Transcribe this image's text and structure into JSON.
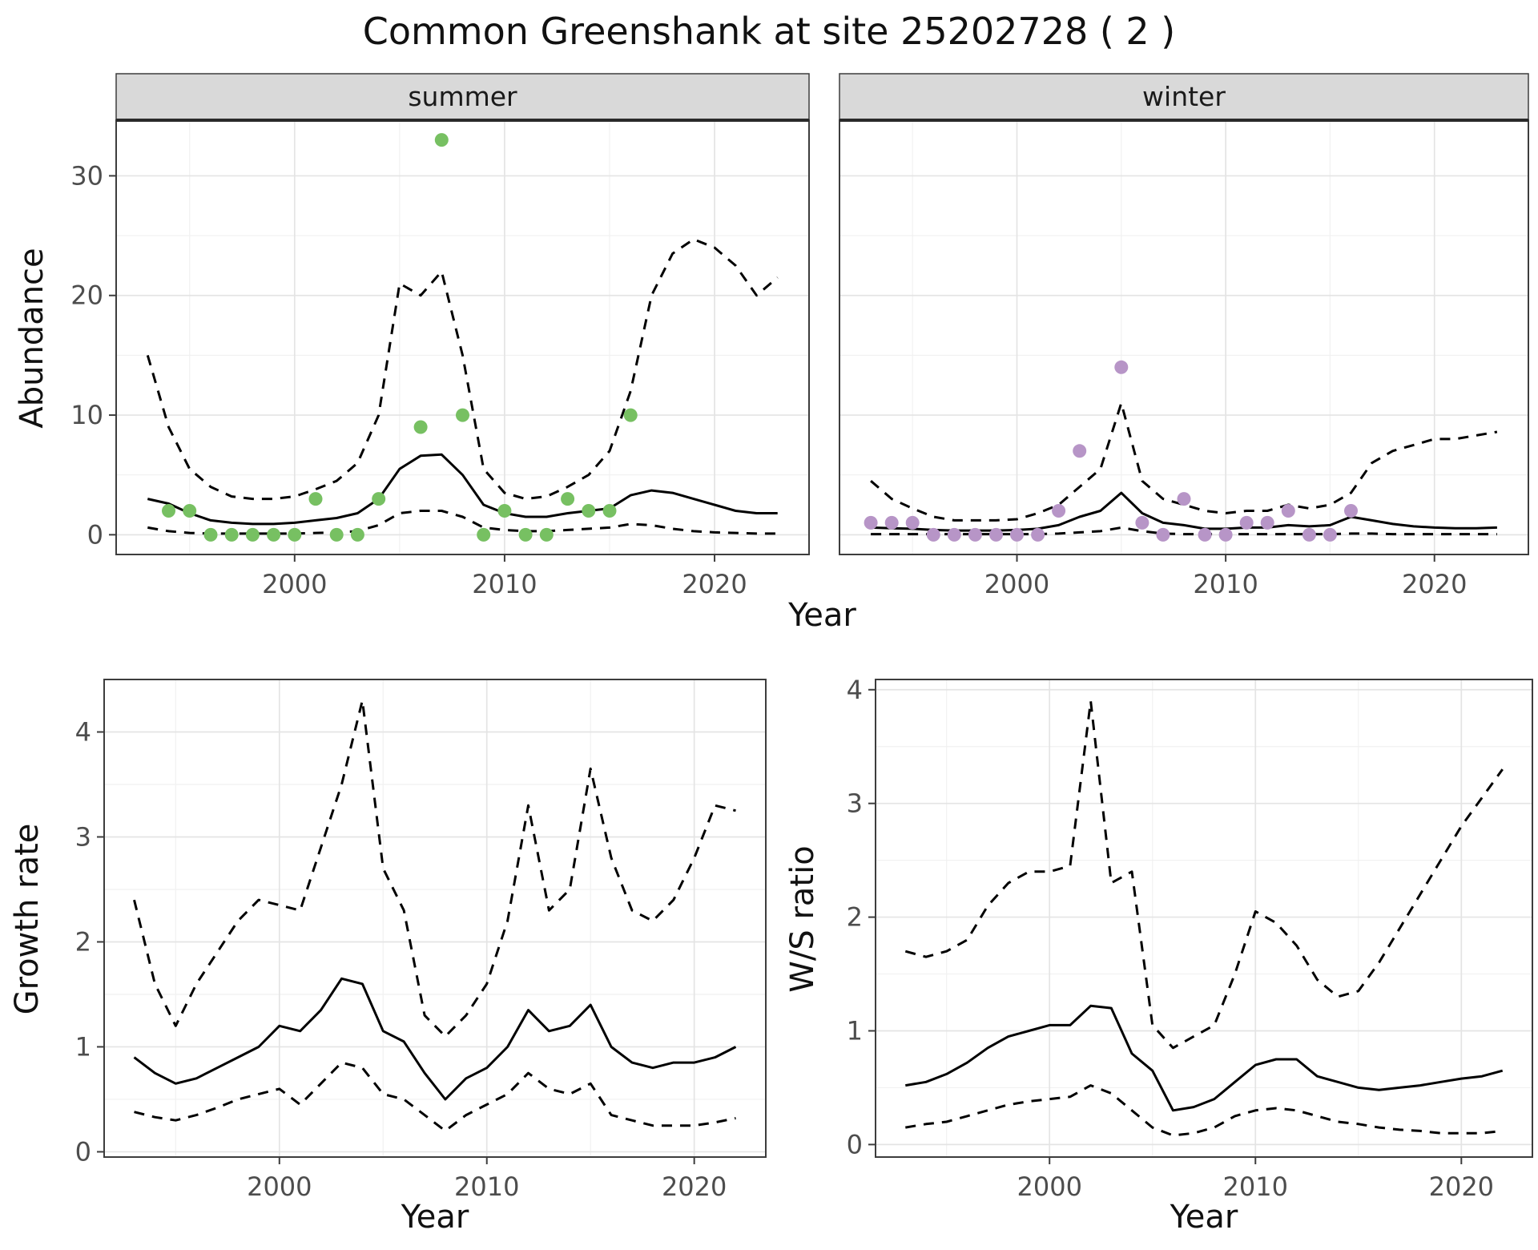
{
  "title": "Common Greenshank at site 25202728 ( 2 )",
  "labels": {
    "year": "Year",
    "abundance": "Abundance",
    "growth_rate": "Growth rate",
    "ws_ratio": "W/S ratio"
  },
  "facets": [
    "summer",
    "winter"
  ],
  "colors": {
    "summer_points": "#77c062",
    "winter_points": "#b795c7",
    "line": "#000000",
    "strip_background": "#d9d9d9",
    "grid_major": "#e4e4e4",
    "grid_minor": "#f1f1f1",
    "panel_border": "#3d3d3d",
    "strip_underline": "#2a2a2a",
    "tick_text": "#4d4d4d",
    "text": "#1a1a1a"
  },
  "chart_data": [
    {
      "id": "abundance-summer",
      "type": "line",
      "facet_label": "summer",
      "xlabel": "Year",
      "ylabel": "Abundance",
      "xlim": [
        1991.5,
        2024.5
      ],
      "ylim": [
        -1.65,
        34.65
      ],
      "xticks": [
        2000,
        2010,
        2020
      ],
      "xticks_minor": [
        1995,
        2005,
        2015
      ],
      "yticks": [
        0,
        10,
        20,
        30
      ],
      "yticks_minor": [
        5,
        15,
        25
      ],
      "series": [
        {
          "name": "mean",
          "style": "solid",
          "x": [
            1993,
            1994,
            1995,
            1996,
            1997,
            1998,
            1999,
            2000,
            2001,
            2002,
            2003,
            2004,
            2005,
            2006,
            2007,
            2008,
            2009,
            2010,
            2011,
            2012,
            2013,
            2014,
            2015,
            2016,
            2017,
            2018,
            2019,
            2020,
            2021,
            2022,
            2023
          ],
          "y": [
            3.0,
            2.6,
            1.8,
            1.2,
            1.0,
            0.9,
            0.9,
            1.0,
            1.2,
            1.4,
            1.8,
            3.0,
            5.5,
            6.6,
            6.7,
            5.0,
            2.5,
            1.8,
            1.5,
            1.5,
            1.8,
            2.0,
            2.2,
            3.3,
            3.7,
            3.5,
            3.0,
            2.5,
            2.0,
            1.8,
            1.8
          ]
        },
        {
          "name": "upper_ci",
          "style": "dashed",
          "x": [
            1993,
            1994,
            1995,
            1996,
            1997,
            1998,
            1999,
            2000,
            2001,
            2002,
            2003,
            2004,
            2005,
            2006,
            2007,
            2008,
            2009,
            2010,
            2011,
            2012,
            2013,
            2014,
            2015,
            2016,
            2017,
            2018,
            2019,
            2020,
            2021,
            2022,
            2023
          ],
          "y": [
            15.0,
            9.0,
            5.5,
            4.0,
            3.2,
            3.0,
            3.0,
            3.2,
            3.8,
            4.5,
            6.0,
            10.0,
            21.0,
            20.0,
            22.0,
            15.0,
            5.5,
            3.5,
            3.0,
            3.2,
            4.0,
            5.0,
            7.0,
            12.0,
            20.0,
            23.5,
            24.7,
            24.0,
            22.5,
            20.0,
            21.5
          ]
        },
        {
          "name": "lower_ci",
          "style": "dashed",
          "x": [
            1993,
            1994,
            1995,
            1996,
            1997,
            1998,
            1999,
            2000,
            2001,
            2002,
            2003,
            2004,
            2005,
            2006,
            2007,
            2008,
            2009,
            2010,
            2011,
            2012,
            2013,
            2014,
            2015,
            2016,
            2017,
            2018,
            2019,
            2020,
            2021,
            2022,
            2023
          ],
          "y": [
            0.6,
            0.3,
            0.15,
            0.1,
            0.1,
            0.1,
            0.1,
            0.1,
            0.15,
            0.2,
            0.3,
            0.8,
            1.8,
            2.0,
            2.0,
            1.5,
            0.6,
            0.4,
            0.3,
            0.3,
            0.4,
            0.5,
            0.6,
            0.9,
            0.8,
            0.5,
            0.3,
            0.2,
            0.15,
            0.1,
            0.1
          ]
        }
      ],
      "points": {
        "name": "observed-counts",
        "color_key": "summer_points",
        "x": [
          1994,
          1995,
          1996,
          1997,
          1998,
          1999,
          2000,
          2001,
          2002,
          2003,
          2004,
          2006,
          2007,
          2008,
          2009,
          2010,
          2011,
          2012,
          2013,
          2014,
          2015,
          2016
        ],
        "y": [
          2,
          2,
          0,
          0,
          0,
          0,
          0,
          3,
          0,
          0,
          3,
          9,
          33,
          10,
          0,
          2,
          0,
          0,
          3,
          2,
          2,
          10
        ]
      }
    },
    {
      "id": "abundance-winter",
      "type": "line",
      "facet_label": "winter",
      "xlabel": "Year",
      "ylabel": "Abundance",
      "xlim": [
        1991.5,
        2024.5
      ],
      "ylim": [
        -1.65,
        34.65
      ],
      "xticks": [
        2000,
        2010,
        2020
      ],
      "xticks_minor": [
        1995,
        2005,
        2015
      ],
      "yticks": [
        0,
        10,
        20,
        30
      ],
      "yticks_minor": [
        5,
        15,
        25
      ],
      "series": [
        {
          "name": "mean",
          "style": "solid",
          "x": [
            1993,
            1994,
            1995,
            1996,
            1997,
            1998,
            1999,
            2000,
            2001,
            2002,
            2003,
            2004,
            2005,
            2006,
            2007,
            2008,
            2009,
            2010,
            2011,
            2012,
            2013,
            2014,
            2015,
            2016,
            2017,
            2018,
            2019,
            2020,
            2021,
            2022,
            2023
          ],
          "y": [
            0.6,
            0.55,
            0.5,
            0.4,
            0.35,
            0.35,
            0.35,
            0.4,
            0.5,
            0.8,
            1.5,
            2.0,
            3.5,
            1.8,
            1.0,
            0.8,
            0.5,
            0.5,
            0.6,
            0.6,
            0.8,
            0.7,
            0.8,
            1.5,
            1.2,
            0.9,
            0.7,
            0.6,
            0.55,
            0.55,
            0.6
          ]
        },
        {
          "name": "upper_ci",
          "style": "dashed",
          "x": [
            1993,
            1994,
            1995,
            1996,
            1997,
            1998,
            1999,
            2000,
            2001,
            2002,
            2003,
            2004,
            2005,
            2006,
            2007,
            2008,
            2009,
            2010,
            2011,
            2012,
            2013,
            2014,
            2015,
            2016,
            2017,
            2018,
            2019,
            2020,
            2021,
            2022,
            2023
          ],
          "y": [
            4.5,
            3.0,
            2.2,
            1.5,
            1.2,
            1.2,
            1.2,
            1.3,
            1.8,
            2.5,
            4.0,
            5.5,
            11.0,
            4.5,
            3.0,
            2.5,
            2.0,
            1.8,
            2.0,
            2.0,
            2.5,
            2.2,
            2.5,
            3.5,
            6.0,
            7.0,
            7.5,
            8.0,
            8.0,
            8.3,
            8.6
          ]
        },
        {
          "name": "lower_ci",
          "style": "dashed",
          "x": [
            1993,
            1994,
            1995,
            1996,
            1997,
            1998,
            1999,
            2000,
            2001,
            2002,
            2003,
            2004,
            2005,
            2006,
            2007,
            2008,
            2009,
            2010,
            2011,
            2012,
            2013,
            2014,
            2015,
            2016,
            2017,
            2018,
            2019,
            2020,
            2021,
            2022,
            2023
          ],
          "y": [
            0.05,
            0.05,
            0.05,
            0.05,
            0.05,
            0.05,
            0.05,
            0.05,
            0.05,
            0.1,
            0.2,
            0.3,
            0.6,
            0.3,
            0.1,
            0.05,
            0.05,
            0.05,
            0.05,
            0.05,
            0.05,
            0.05,
            0.05,
            0.1,
            0.1,
            0.05,
            0.05,
            0.05,
            0.05,
            0.05,
            0.05
          ]
        }
      ],
      "points": {
        "name": "observed-counts",
        "color_key": "winter_points",
        "x": [
          1993,
          1994,
          1995,
          1996,
          1997,
          1998,
          1999,
          2000,
          2001,
          2002,
          2003,
          2005,
          2006,
          2007,
          2008,
          2009,
          2010,
          2011,
          2012,
          2013,
          2014,
          2015,
          2016
        ],
        "y": [
          1,
          1,
          1,
          0,
          0,
          0,
          0,
          0,
          0,
          2,
          7,
          14,
          1,
          0,
          3,
          0,
          0,
          1,
          1,
          2,
          0,
          0,
          2
        ]
      }
    },
    {
      "id": "growth-rate",
      "type": "line",
      "facet_label": null,
      "xlabel": "Year",
      "ylabel": "Growth rate",
      "xlim": [
        1991.55,
        2023.45
      ],
      "ylim": [
        -0.05,
        4.5
      ],
      "xticks": [
        2000,
        2010,
        2020
      ],
      "xticks_minor": [
        1995,
        2005,
        2015
      ],
      "yticks": [
        0,
        1,
        2,
        3,
        4
      ],
      "yticks_minor": [
        0.5,
        1.5,
        2.5,
        3.5
      ],
      "series": [
        {
          "name": "mean",
          "style": "solid",
          "x": [
            1993,
            1994,
            1995,
            1996,
            1997,
            1998,
            1999,
            2000,
            2001,
            2002,
            2003,
            2004,
            2005,
            2006,
            2007,
            2008,
            2009,
            2010,
            2011,
            2012,
            2013,
            2014,
            2015,
            2016,
            2017,
            2018,
            2019,
            2020,
            2021,
            2022
          ],
          "y": [
            0.9,
            0.75,
            0.65,
            0.7,
            0.8,
            0.9,
            1.0,
            1.2,
            1.15,
            1.35,
            1.65,
            1.6,
            1.15,
            1.05,
            0.75,
            0.5,
            0.7,
            0.8,
            1.0,
            1.35,
            1.15,
            1.2,
            1.4,
            1.0,
            0.85,
            0.8,
            0.85,
            0.85,
            0.9,
            1.0
          ]
        },
        {
          "name": "upper_ci",
          "style": "dashed",
          "x": [
            1993,
            1994,
            1995,
            1996,
            1997,
            1998,
            1999,
            2000,
            2001,
            2002,
            2003,
            2004,
            2005,
            2006,
            2007,
            2008,
            2009,
            2010,
            2011,
            2012,
            2013,
            2014,
            2015,
            2016,
            2017,
            2018,
            2019,
            2020,
            2021,
            2022
          ],
          "y": [
            2.4,
            1.6,
            1.2,
            1.6,
            1.9,
            2.2,
            2.4,
            2.35,
            2.3,
            2.9,
            3.5,
            4.3,
            2.7,
            2.3,
            1.3,
            1.1,
            1.3,
            1.6,
            2.2,
            3.3,
            2.3,
            2.5,
            3.65,
            2.8,
            2.3,
            2.2,
            2.4,
            2.8,
            3.3,
            3.25
          ]
        },
        {
          "name": "lower_ci",
          "style": "dashed",
          "x": [
            1993,
            1994,
            1995,
            1996,
            1997,
            1998,
            1999,
            2000,
            2001,
            2002,
            2003,
            2004,
            2005,
            2006,
            2007,
            2008,
            2009,
            2010,
            2011,
            2012,
            2013,
            2014,
            2015,
            2016,
            2017,
            2018,
            2019,
            2020,
            2021,
            2022
          ],
          "y": [
            0.38,
            0.33,
            0.3,
            0.35,
            0.42,
            0.5,
            0.55,
            0.6,
            0.45,
            0.65,
            0.85,
            0.8,
            0.55,
            0.5,
            0.35,
            0.2,
            0.35,
            0.45,
            0.55,
            0.75,
            0.6,
            0.55,
            0.65,
            0.35,
            0.3,
            0.25,
            0.25,
            0.25,
            0.28,
            0.32
          ]
        }
      ],
      "points": null
    },
    {
      "id": "ws-ratio",
      "type": "line",
      "facet_label": null,
      "xlabel": "Year",
      "ylabel": "W/S ratio",
      "xlim": [
        1991.55,
        2023.45
      ],
      "ylim": [
        -0.11,
        4.09
      ],
      "xticks": [
        2000,
        2010,
        2020
      ],
      "xticks_minor": [
        1995,
        2005,
        2015
      ],
      "yticks": [
        0,
        1,
        2,
        3,
        4
      ],
      "yticks_minor": [
        0.5,
        1.5,
        2.5,
        3.5
      ],
      "series": [
        {
          "name": "mean",
          "style": "solid",
          "x": [
            1993,
            1994,
            1995,
            1996,
            1997,
            1998,
            1999,
            2000,
            2001,
            2002,
            2003,
            2004,
            2005,
            2006,
            2007,
            2008,
            2009,
            2010,
            2011,
            2012,
            2013,
            2014,
            2015,
            2016,
            2017,
            2018,
            2019,
            2020,
            2021,
            2022
          ],
          "y": [
            0.52,
            0.55,
            0.62,
            0.72,
            0.85,
            0.95,
            1.0,
            1.05,
            1.05,
            1.22,
            1.2,
            0.8,
            0.65,
            0.3,
            0.33,
            0.4,
            0.55,
            0.7,
            0.75,
            0.75,
            0.6,
            0.55,
            0.5,
            0.48,
            0.5,
            0.52,
            0.55,
            0.58,
            0.6,
            0.65
          ]
        },
        {
          "name": "upper_ci",
          "style": "dashed",
          "x": [
            1993,
            1994,
            1995,
            1996,
            1997,
            1998,
            1999,
            2000,
            2001,
            2002,
            2003,
            2004,
            2005,
            2006,
            2007,
            2008,
            2009,
            2010,
            2011,
            2012,
            2013,
            2014,
            2015,
            2016,
            2017,
            2018,
            2019,
            2020,
            2021,
            2022
          ],
          "y": [
            1.7,
            1.65,
            1.7,
            1.8,
            2.1,
            2.3,
            2.4,
            2.4,
            2.45,
            3.9,
            2.3,
            2.4,
            1.05,
            0.85,
            0.95,
            1.05,
            1.5,
            2.05,
            1.95,
            1.75,
            1.45,
            1.3,
            1.35,
            1.6,
            1.9,
            2.2,
            2.5,
            2.8,
            3.05,
            3.3
          ]
        },
        {
          "name": "lower_ci",
          "style": "dashed",
          "x": [
            1993,
            1994,
            1995,
            1996,
            1997,
            1998,
            1999,
            2000,
            2001,
            2002,
            2003,
            2004,
            2005,
            2006,
            2007,
            2008,
            2009,
            2010,
            2011,
            2012,
            2013,
            2014,
            2015,
            2016,
            2017,
            2018,
            2019,
            2020,
            2021,
            2022
          ],
          "y": [
            0.15,
            0.18,
            0.2,
            0.25,
            0.3,
            0.35,
            0.38,
            0.4,
            0.42,
            0.52,
            0.45,
            0.3,
            0.15,
            0.08,
            0.1,
            0.15,
            0.25,
            0.3,
            0.32,
            0.3,
            0.25,
            0.2,
            0.18,
            0.15,
            0.13,
            0.12,
            0.1,
            0.1,
            0.1,
            0.12
          ]
        }
      ],
      "points": null
    }
  ]
}
